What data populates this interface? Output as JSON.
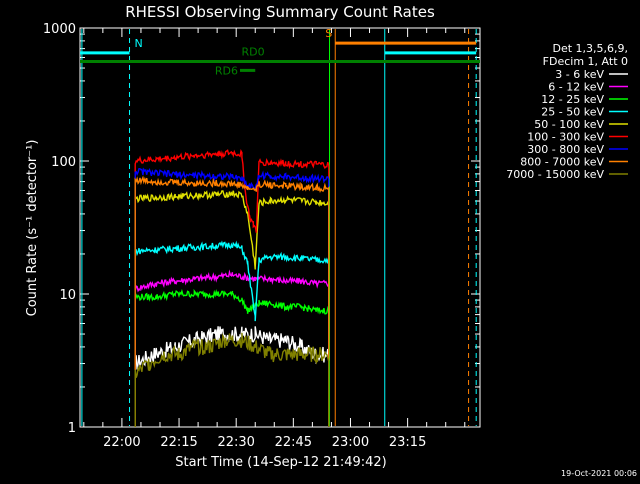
{
  "chart_data": {
    "type": "line",
    "title": "RHESSI Observing Summary Count Rates",
    "xlabel": "Start Time (14-Sep-12 21:49:42)",
    "ylabel": "Count Rate (s⁻¹ detector⁻¹)",
    "yscale": "log",
    "ylim": [
      1,
      1000
    ],
    "y_ticks": [
      {
        "value": 1,
        "label": "1"
      },
      {
        "value": 10,
        "label": "10"
      },
      {
        "value": 100,
        "label": "100"
      },
      {
        "value": 1000,
        "label": "1000"
      }
    ],
    "xlim_minutes": [
      0,
      105
    ],
    "x_ticks": [
      {
        "minute": 11,
        "label": "22:00"
      },
      {
        "minute": 26,
        "label": "22:15"
      },
      {
        "minute": 41,
        "label": "22:30"
      },
      {
        "minute": 56,
        "label": "22:45"
      },
      {
        "minute": 71,
        "label": "23:00"
      },
      {
        "minute": 86,
        "label": "23:15"
      }
    ],
    "grid": false,
    "legend": {
      "placement": "right",
      "header": [
        "Det 1,3,5,6,9,",
        "FDecim 1, Att 0"
      ],
      "entries": [
        {
          "label": "3 - 6 keV",
          "color": "#ffffff"
        },
        {
          "label": "6 - 12 keV",
          "color": "#ff00ff"
        },
        {
          "label": "12 - 25 keV",
          "color": "#00ff00"
        },
        {
          "label": "25 - 50 keV",
          "color": "#00ffff"
        },
        {
          "label": "50 - 100 keV",
          "color": "#e0e000"
        },
        {
          "label": "100 - 300 keV",
          "color": "#ff0000"
        },
        {
          "label": "300 - 800 keV",
          "color": "#0000ff"
        },
        {
          "label": "800 - 7000 keV",
          "color": "#ff8000"
        },
        {
          "label": "7000 - 15000 keV",
          "color": "#808000"
        }
      ]
    },
    "series": [
      {
        "name": "3 - 6 keV",
        "color": "#ffffff",
        "x": [
          14.5,
          19,
          25,
          30,
          36,
          42.5,
          46,
          50,
          54,
          58,
          62,
          65.3
        ],
        "y": [
          3,
          3.5,
          4,
          4.5,
          5,
          5,
          5,
          4.5,
          4.5,
          4,
          3.5,
          3.5
        ]
      },
      {
        "name": "6 - 12 keV",
        "color": "#ff00ff",
        "x": [
          14.5,
          20,
          25,
          30,
          36,
          40,
          42.5,
          46,
          50,
          54,
          58,
          62,
          65.3
        ],
        "y": [
          11,
          12,
          12.5,
          13,
          13.5,
          14,
          13.5,
          13,
          13,
          12.5,
          12.5,
          12,
          12
        ]
      },
      {
        "name": "12 - 25 keV",
        "color": "#00ff00",
        "x": [
          14.5,
          20,
          25,
          30,
          36,
          40,
          42.5,
          44,
          47,
          50,
          54,
          58,
          62,
          65.3
        ],
        "y": [
          9.5,
          9.5,
          10,
          10,
          10,
          10,
          9,
          7.5,
          8.5,
          8.5,
          8,
          8,
          7.5,
          7.5
        ]
      },
      {
        "name": "25 - 50 keV",
        "color": "#00ffff",
        "x": [
          14.5,
          20,
          25,
          30,
          36,
          40,
          42.5,
          44,
          46,
          47,
          50,
          54,
          58,
          62,
          65.3
        ],
        "y": [
          21,
          21.5,
          22,
          22.5,
          23,
          23.5,
          22,
          17,
          6.5,
          18,
          19,
          19,
          18.5,
          18,
          18
        ]
      },
      {
        "name": "50 - 100 keV",
        "color": "#e0e000",
        "x": [
          14.5,
          20,
          25,
          30,
          36,
          40,
          42.5,
          44,
          46,
          47,
          50,
          54,
          58,
          62,
          65.3
        ],
        "y": [
          52,
          53,
          54,
          55,
          56,
          57,
          55,
          40,
          16,
          48,
          50,
          51,
          50,
          49,
          48
        ]
      },
      {
        "name": "100 - 300 keV",
        "color": "#ff0000",
        "x": [
          14.5,
          20,
          25,
          30,
          36,
          40,
          42.5,
          43.5,
          44.5,
          45.5,
          46.3,
          47,
          50,
          54,
          58,
          62,
          65.3
        ],
        "y": [
          100,
          103,
          106,
          110,
          113,
          115,
          112,
          55,
          38,
          33,
          30,
          98,
          97,
          96,
          95,
          94,
          93
        ]
      },
      {
        "name": "300 - 800 keV",
        "color": "#0000ff",
        "x": [
          14.5,
          20,
          25,
          30,
          36,
          40,
          42.5,
          44,
          46.3,
          47,
          50,
          54,
          58,
          62,
          65.3
        ],
        "y": [
          84,
          81,
          79,
          78,
          77,
          76,
          74,
          66,
          64,
          78,
          77,
          76,
          75,
          74,
          73
        ]
      },
      {
        "name": "800 - 7000 keV",
        "color": "#ff8000",
        "x": [
          14.5,
          20,
          25,
          30,
          36,
          40,
          42.5,
          44,
          46.3,
          47,
          50,
          54,
          58,
          62,
          65.3
        ],
        "y": [
          72,
          70,
          69,
          68,
          68,
          67,
          66,
          62,
          61,
          67,
          66,
          65,
          64,
          63,
          62
        ]
      },
      {
        "name": "7000 - 15000 keV",
        "color": "#808000",
        "x": [
          14.5,
          18,
          22,
          26,
          30,
          34,
          38,
          42.5,
          46,
          50,
          54,
          58,
          62,
          65.3
        ],
        "y": [
          2.5,
          3,
          3.5,
          3.5,
          4,
          4,
          4.5,
          4.5,
          4,
          3.5,
          3.5,
          3.5,
          3.5,
          3.5
        ]
      }
    ],
    "event_bars": [
      {
        "label": "N",
        "color": "#00ffff",
        "start": 0,
        "end": 13,
        "y": 650
      },
      {
        "label": "",
        "color": "#00ffff",
        "start": 80,
        "end": 104,
        "y": 650
      },
      {
        "label": "S",
        "color": "#ff8000",
        "start": 67,
        "end": 104,
        "y": 770
      },
      {
        "label": "",
        "color": "#008000",
        "start": 0,
        "end": 105,
        "y": 560
      },
      {
        "label": "RD0",
        "color": "#008000",
        "start": 46,
        "end": 49,
        "y": 560
      },
      {
        "label": "RD6",
        "color": "#008000",
        "start": 42,
        "end": 46,
        "y": 480
      }
    ],
    "vertical_markers": [
      {
        "minute": 0.5,
        "color": "#00ffff",
        "style": "solid"
      },
      {
        "minute": 13,
        "color": "#00ffff",
        "style": "dashed"
      },
      {
        "minute": 65.5,
        "color": "#00ff00",
        "style": "solid"
      },
      {
        "minute": 67,
        "color": "#ff8000",
        "style": "solid"
      },
      {
        "minute": 80,
        "color": "#00ffff",
        "style": "solid"
      },
      {
        "minute": 102,
        "color": "#ff8000",
        "style": "dashed"
      },
      {
        "minute": 104,
        "color": "#00ffff",
        "style": "dashed"
      }
    ],
    "footer": "19-Oct-2021 00:06"
  }
}
